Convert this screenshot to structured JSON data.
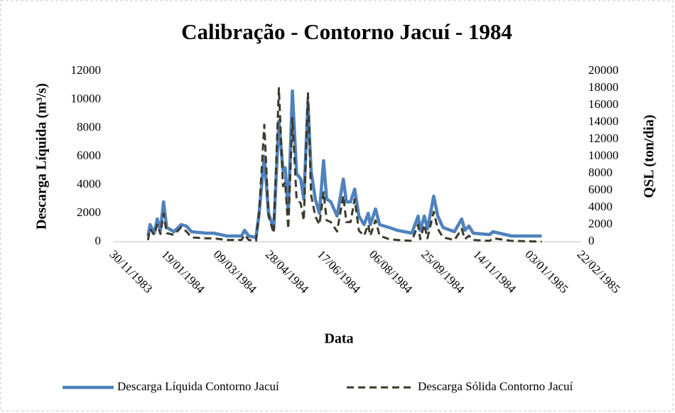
{
  "chart_data": {
    "type": "line",
    "title": "Calibração - Contorno Jacuí - 1984",
    "x_label": "Data",
    "y_label": "Descarga Líquida (m³/s)",
    "y2_label": "QSL (ton/dia)",
    "x": [
      "02/01/1984",
      "04/01/1984",
      "08/01/1984",
      "11/01/1984",
      "14/01/1984",
      "17/01/1984",
      "20/01/1984",
      "27/01/1984",
      "03/02/1984",
      "08/02/1984",
      "13/02/1984",
      "27/02/1984",
      "05/03/1984",
      "18/03/1984",
      "01/04/1984",
      "04/04/1984",
      "08/04/1984",
      "15/04/1984",
      "18/04/1984",
      "23/04/1984",
      "27/04/1984",
      "02/05/1984",
      "07/05/1984",
      "11/05/1984",
      "13/05/1984",
      "16/05/1984",
      "20/05/1984",
      "24/05/1984",
      "28/05/1984",
      "31/05/1984",
      "04/06/1984",
      "07/06/1984",
      "11/06/1984",
      "15/06/1984",
      "19/06/1984",
      "22/06/1984",
      "26/06/1984",
      "02/07/1984",
      "08/07/1984",
      "11/07/1984",
      "15/07/1984",
      "19/07/1984",
      "23/07/1984",
      "28/07/1984",
      "01/08/1984",
      "03/08/1984",
      "08/08/1984",
      "12/08/1984",
      "21/08/1984",
      "29/08/1984",
      "12/09/1984",
      "18/09/1984",
      "20/09/1984",
      "24/09/1984",
      "27/09/1984",
      "03/10/1984",
      "07/10/1984",
      "12/10/1984",
      "23/10/1984",
      "30/10/1984",
      "02/11/1984",
      "06/11/1984",
      "10/11/1984",
      "26/11/1984",
      "29/11/1984",
      "17/12/1984",
      "15/01/1985"
    ],
    "series": [
      {
        "name": "Descarga Líquida Contorno Jacuí",
        "color": "#4f81bd",
        "style": "solid",
        "values": [
          400,
          1200,
          600,
          1600,
          800,
          2800,
          1000,
          700,
          1200,
          1100,
          700,
          600,
          600,
          400,
          400,
          800,
          400,
          300,
          2000,
          6000,
          2000,
          900,
          8500,
          5000,
          5200,
          2000,
          10600,
          4800,
          4400,
          3000,
          9800,
          5000,
          3000,
          2000,
          5700,
          3000,
          2800,
          1800,
          4400,
          2800,
          2800,
          3700,
          1800,
          1200,
          2000,
          1200,
          2300,
          1200,
          1000,
          800,
          600,
          1800,
          800,
          1800,
          900,
          3200,
          1800,
          1000,
          700,
          1600,
          800,
          1100,
          600,
          500,
          700,
          400,
          400
        ]
      },
      {
        "name": "Descarga Sólida Contorno Jacuí",
        "color": "#3b3a2a",
        "style": "dashed",
        "axis": "y2",
        "values": [
          200,
          1500,
          800,
          2000,
          900,
          3300,
          1000,
          800,
          1700,
          1200,
          500,
          400,
          400,
          200,
          200,
          800,
          200,
          100,
          3500,
          13700,
          3000,
          1000,
          18000,
          6500,
          7000,
          1500,
          14500,
          5000,
          4500,
          2500,
          17500,
          5500,
          3000,
          2000,
          5800,
          2500,
          2300,
          1200,
          5400,
          2300,
          2300,
          5000,
          1300,
          700,
          2000,
          700,
          2500,
          700,
          300,
          200,
          100,
          2000,
          300,
          2000,
          400,
          3500,
          1500,
          500,
          200,
          1500,
          300,
          700,
          200,
          100,
          400,
          100,
          0
        ]
      }
    ],
    "xlim": [
      "30/11/1983",
      "22/02/1985"
    ],
    "xticks": [
      "30/11/1983",
      "19/01/1984",
      "09/03/1984",
      "28/04/1984",
      "17/06/1984",
      "06/08/1984",
      "25/09/1984",
      "14/11/1984",
      "03/01/1985",
      "22/02/1985"
    ],
    "ylim": [
      0,
      12000
    ],
    "yticks": [
      0,
      2000,
      4000,
      6000,
      8000,
      10000,
      12000
    ],
    "y2lim": [
      0,
      20000
    ],
    "y2ticks": [
      0,
      2000,
      4000,
      6000,
      8000,
      10000,
      12000,
      14000,
      16000,
      18000,
      20000
    ],
    "grid": false,
    "legend": "bottom"
  }
}
